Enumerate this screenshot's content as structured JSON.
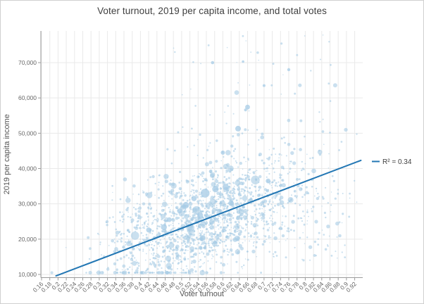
{
  "window": {
    "background": "#ffffff",
    "border_color": "#cfcfcf"
  },
  "chart_data": {
    "type": "scatter",
    "title": "Voter turnout, 2019 per capita income, and total votes",
    "xlabel": "Voter turnout",
    "ylabel": "2019 per capita income",
    "xlim": [
      0.16,
      0.92
    ],
    "ylim": [
      10000,
      70000
    ],
    "grid": true,
    "x_tick_values": [
      0.16,
      0.18,
      0.2,
      0.22,
      0.24,
      0.26,
      0.28,
      0.3,
      0.32,
      0.34,
      0.36,
      0.38,
      0.4,
      0.42,
      0.44,
      0.46,
      0.48,
      0.5,
      0.52,
      0.54,
      0.56,
      0.58,
      0.6,
      0.62,
      0.64,
      0.66,
      0.68,
      0.7,
      0.72,
      0.74,
      0.76,
      0.78,
      0.8,
      0.82,
      0.84,
      0.86,
      0.88,
      0.9,
      0.92
    ],
    "x_tick_labels": [
      "0.16",
      "0.18",
      "0.2",
      "0.22",
      "0.24",
      "0.26",
      "0.28",
      "0.3",
      "0.32",
      "0.34",
      "0.36",
      "0.38",
      "0.4",
      "0.42",
      "0.44",
      "0.46",
      "0.48",
      "0.5",
      "0.52",
      "0.54",
      "0.56",
      "0.58",
      "0.6",
      "0.62",
      "0.64",
      "0.66",
      "0.68",
      "0.7",
      "0.72",
      "0.74",
      "0.76",
      "0.78",
      "0.8",
      "0.82",
      "0.84",
      "0.86",
      "0.88",
      "0.9",
      "0.92"
    ],
    "y_tick_values": [
      10000,
      20000,
      30000,
      40000,
      50000,
      60000,
      70000
    ],
    "y_tick_labels": [
      "10,000",
      "20,000",
      "30,000",
      "40,000",
      "50,000",
      "60,000",
      "70,000"
    ],
    "legend": {
      "label": "R² = 0.34",
      "position": "right-of-plot"
    },
    "trendline": {
      "x1": 0.195,
      "y1": 9600,
      "x2": 0.935,
      "y2": 42300,
      "r_squared": 0.34
    },
    "highlight_points": [
      {
        "x": 0.557,
        "y": 33000,
        "r": 6.3
      },
      {
        "x": 0.582,
        "y": 34200,
        "r": 4.6
      },
      {
        "x": 0.607,
        "y": 34800,
        "r": 4.3
      },
      {
        "x": 0.637,
        "y": 51300,
        "r": 4.0
      },
      {
        "x": 0.66,
        "y": 57400,
        "r": 3.4
      },
      {
        "x": 0.51,
        "y": 29600,
        "r": 4.6
      },
      {
        "x": 0.457,
        "y": 23400,
        "r": 4.3
      },
      {
        "x": 0.42,
        "y": 22600,
        "r": 3.6
      },
      {
        "x": 0.545,
        "y": 26800,
        "r": 4.1
      },
      {
        "x": 0.62,
        "y": 30200,
        "r": 3.9
      },
      {
        "x": 0.71,
        "y": 36500,
        "r": 3.4
      },
      {
        "x": 0.575,
        "y": 70000,
        "r": 2.3
      },
      {
        "x": 0.649,
        "y": 70300,
        "r": 1.8
      },
      {
        "x": 0.76,
        "y": 68000,
        "r": 2.2
      },
      {
        "x": 0.7,
        "y": 63500,
        "r": 2.0
      },
      {
        "x": 0.655,
        "y": 56600,
        "r": 2.1
      },
      {
        "x": 0.6,
        "y": 44500,
        "r": 3.0
      },
      {
        "x": 0.53,
        "y": 31500,
        "r": 3.8
      },
      {
        "x": 0.495,
        "y": 28000,
        "r": 3.6
      },
      {
        "x": 0.47,
        "y": 25500,
        "r": 3.4
      }
    ],
    "point_cloud": {
      "note": "Dense bubble cloud of ~1900 unlabeled districts; approximated with a seeded deterministic generator matching the visible distribution (bubble size = total votes).",
      "seed": 7,
      "count": 1900,
      "core_fraction": 0.8,
      "core_x_mean": 0.565,
      "core_x_sd": 0.115,
      "core_y_mean": 26000,
      "core_y_sd": 9000,
      "core_correlation": 0.58,
      "background_fraction": 0.165,
      "background_x_min": 0.33,
      "background_x_span": 0.58,
      "background_y_min": 14000,
      "background_y_span": 24000,
      "high_outlier_fraction": 0.035,
      "high_x_min": 0.48,
      "high_x_span": 0.42,
      "high_y_min": 45000,
      "high_y_span": 33000,
      "x_clip": [
        0.185,
        0.925
      ],
      "y_clip": [
        10500,
        78500
      ]
    },
    "colors": {
      "point": "#a6cbe5",
      "trend": "#2377b4",
      "grid": "#e9e9e9",
      "axis": "#9b9b9b",
      "tick_text": "#666666",
      "title_text": "#3f3f3f",
      "axis_title_text": "#555555",
      "legend_text": "#404040"
    }
  }
}
